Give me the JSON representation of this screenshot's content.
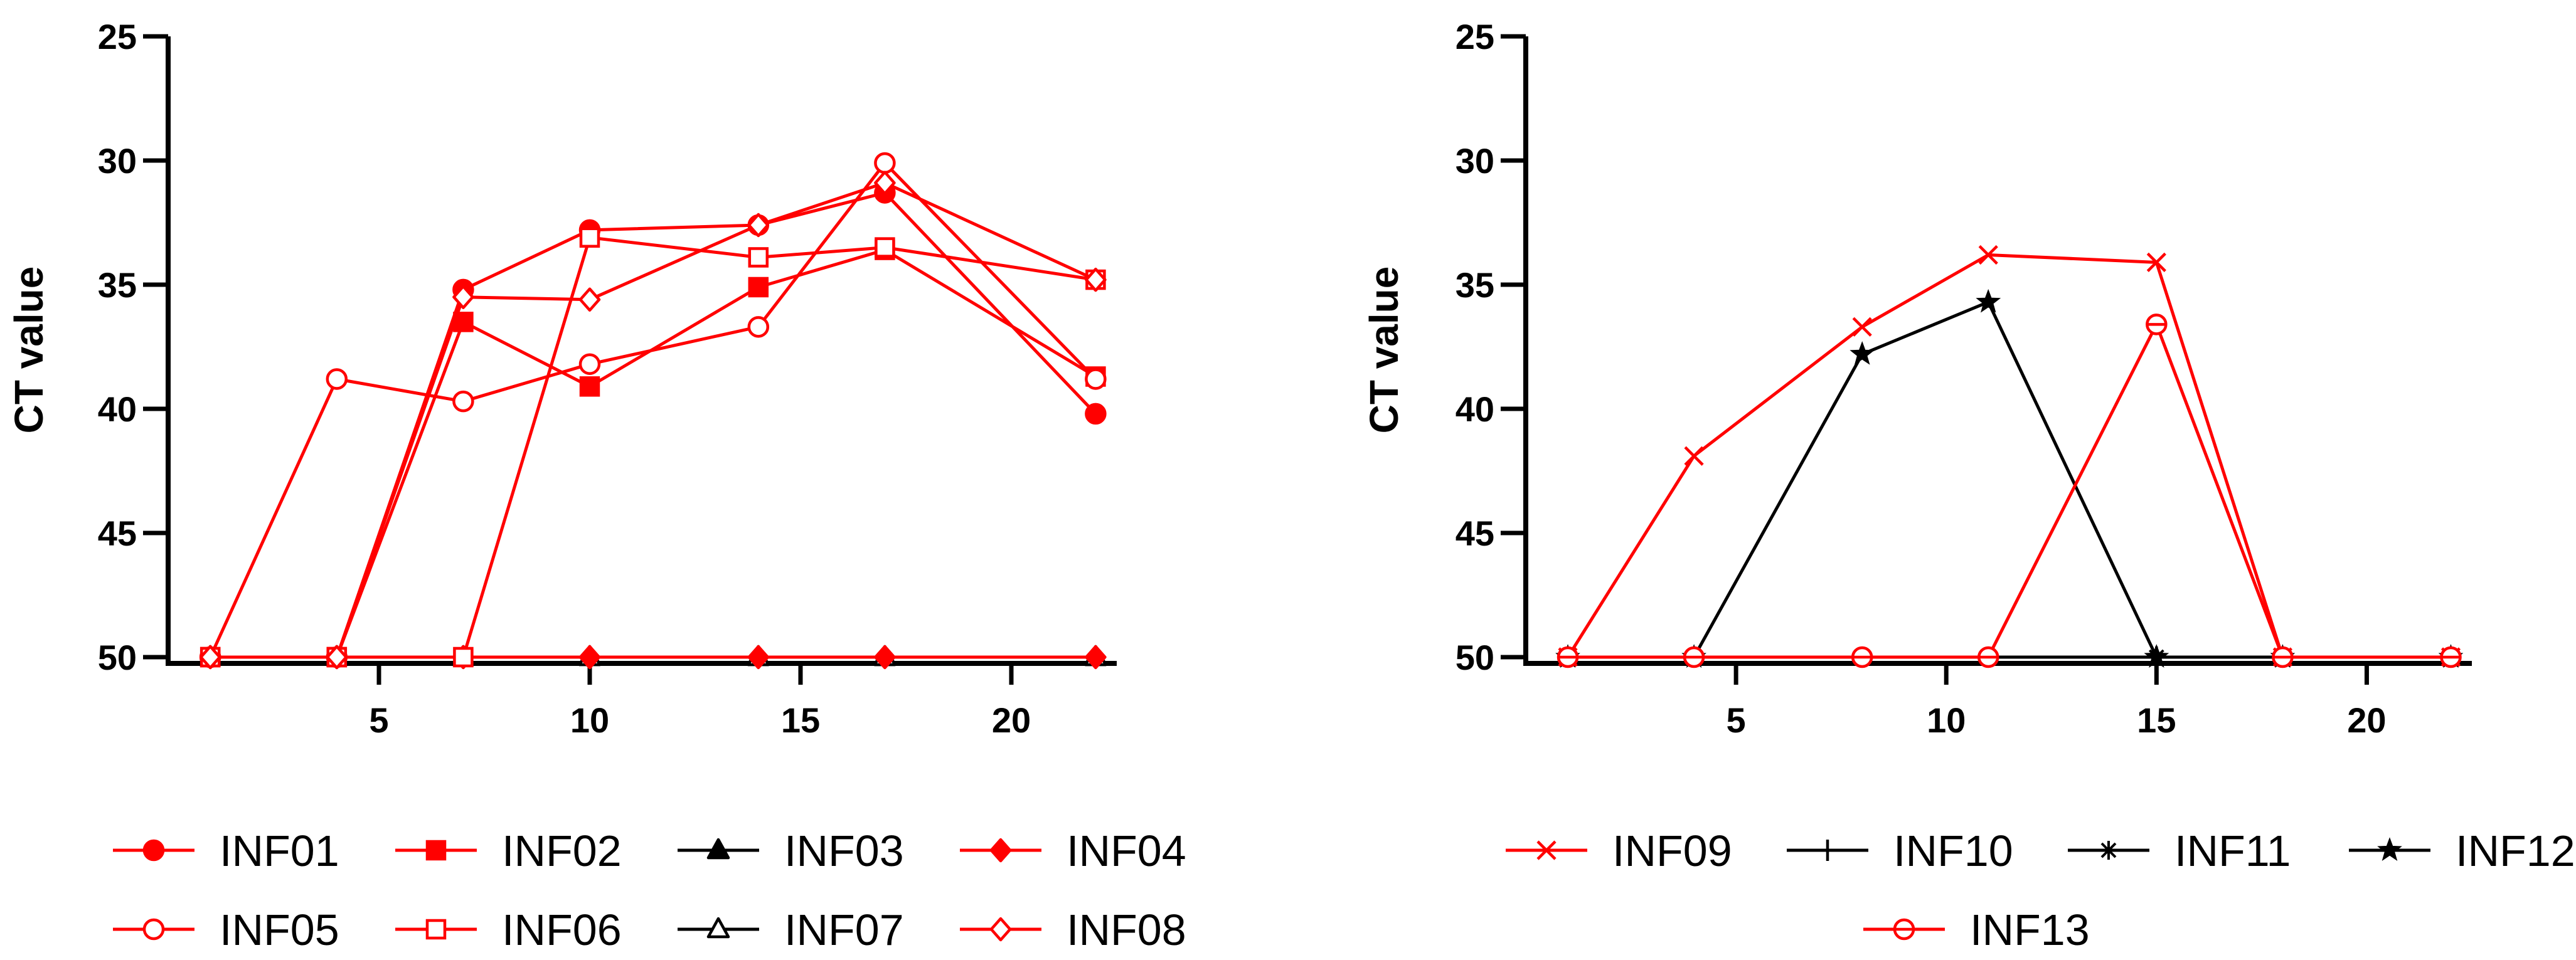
{
  "chart_data": [
    {
      "type": "line",
      "ylabel": "CT value",
      "xlabel": "",
      "y_inverted": true,
      "ylim": [
        25,
        50
      ],
      "yticks": [
        25,
        30,
        35,
        40,
        45,
        50
      ],
      "xlim": [
        0,
        22.5
      ],
      "xticks": [
        5,
        10,
        15,
        20
      ],
      "legend_position": "bottom",
      "series": [
        {
          "name": "INF01",
          "color": "#ff0000",
          "marker": "circle-filled",
          "x": [
            1,
            4,
            7,
            10,
            14,
            17,
            22
          ],
          "y": [
            50,
            50,
            35.2,
            32.8,
            32.6,
            31.3,
            40.2
          ]
        },
        {
          "name": "INF02",
          "color": "#ff0000",
          "marker": "square-filled",
          "x": [
            1,
            4,
            7,
            10,
            14,
            17,
            22
          ],
          "y": [
            50,
            50,
            36.5,
            39.1,
            35.1,
            33.6,
            38.7
          ]
        },
        {
          "name": "INF03",
          "color": "#000000",
          "marker": "triangle-filled",
          "x": [
            1,
            4,
            7,
            10,
            14,
            17,
            22
          ],
          "y": [
            50,
            50,
            50,
            50,
            50,
            50,
            50
          ]
        },
        {
          "name": "INF04",
          "color": "#ff0000",
          "marker": "diamond-filled",
          "x": [
            1,
            4,
            7,
            10,
            14,
            17,
            22
          ],
          "y": [
            50,
            50,
            50,
            50,
            50,
            50,
            50
          ]
        },
        {
          "name": "INF05",
          "color": "#ff0000",
          "marker": "circle-open",
          "x": [
            1,
            4,
            7,
            10,
            14,
            17,
            22
          ],
          "y": [
            50,
            38.8,
            39.7,
            38.2,
            36.7,
            30.1,
            38.8
          ]
        },
        {
          "name": "INF06",
          "color": "#ff0000",
          "marker": "square-open",
          "x": [
            1,
            4,
            7,
            10,
            14,
            17,
            22
          ],
          "y": [
            50,
            50,
            50,
            33.1,
            33.9,
            33.5,
            34.8
          ]
        },
        {
          "name": "INF07",
          "color": "#000000",
          "marker": "triangle-open",
          "x": [
            1,
            4,
            7,
            10,
            14,
            17,
            22
          ],
          "y": [
            50,
            50,
            50,
            50,
            50,
            50,
            50
          ]
        },
        {
          "name": "INF08",
          "color": "#ff0000",
          "marker": "diamond-open",
          "x": [
            1,
            4,
            7,
            10,
            14,
            17,
            22
          ],
          "y": [
            50,
            50,
            35.5,
            35.6,
            32.6,
            30.9,
            34.8
          ]
        }
      ]
    },
    {
      "type": "line",
      "ylabel": "CT value",
      "xlabel": "",
      "y_inverted": true,
      "ylim": [
        25,
        50
      ],
      "yticks": [
        25,
        30,
        35,
        40,
        45,
        50
      ],
      "xlim": [
        0,
        22.5
      ],
      "xticks": [
        5,
        10,
        15,
        20
      ],
      "legend_position": "bottom",
      "series": [
        {
          "name": "INF09",
          "color": "#ff0000",
          "marker": "x",
          "x": [
            1,
            4,
            8,
            11,
            15,
            18,
            22
          ],
          "y": [
            50,
            41.9,
            36.7,
            33.8,
            34.1,
            50,
            50
          ]
        },
        {
          "name": "INF10",
          "color": "#000000",
          "marker": "plus",
          "x": [
            1,
            4,
            8,
            11,
            15,
            18,
            22
          ],
          "y": [
            50,
            50,
            50,
            50,
            50,
            50,
            50
          ]
        },
        {
          "name": "INF11",
          "color": "#000000",
          "marker": "asterisk",
          "x": [
            1,
            4,
            8,
            11,
            15,
            18,
            22
          ],
          "y": [
            50,
            50,
            50,
            50,
            50,
            50,
            50
          ]
        },
        {
          "name": "INF12",
          "color": "#000000",
          "marker": "star",
          "x": [
            1,
            4,
            8,
            11,
            15,
            18,
            22
          ],
          "y": [
            50,
            50,
            37.8,
            35.7,
            50,
            50,
            50
          ]
        },
        {
          "name": "INF13",
          "color": "#ff0000",
          "marker": "circle-dash",
          "x": [
            1,
            4,
            8,
            11,
            15,
            18,
            22
          ],
          "y": [
            50,
            50,
            50,
            50,
            36.6,
            50,
            50
          ]
        }
      ]
    }
  ]
}
